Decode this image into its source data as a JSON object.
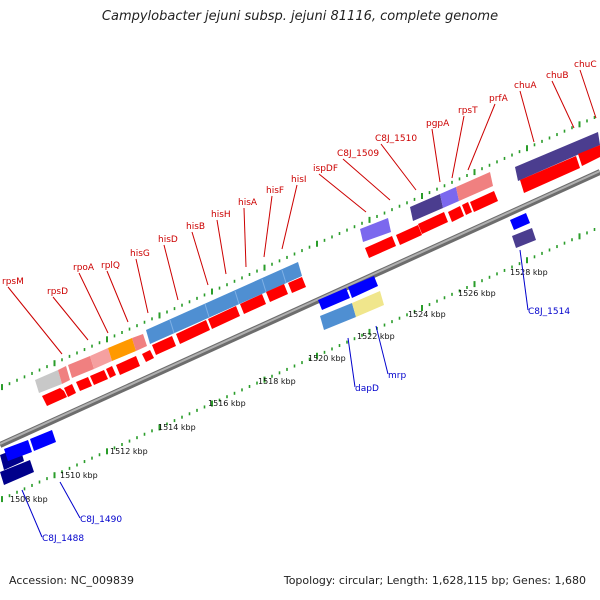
{
  "title": "Campylobacter jejuni subsp. jejuni 81116, complete genome",
  "colors": {
    "forward_gene_label": "#cc0000",
    "reverse_gene_label": "#0000cc",
    "backbone": "#888888",
    "tick": "#2a9d2a",
    "cds_forward": "#ff0000",
    "cds_reverse": "#0000ff"
  },
  "ruler": {
    "labels": [
      "1508 kbp",
      "1510 kbp",
      "1512 kbp",
      "1514 kbp",
      "1516 kbp",
      "1518 kbp",
      "1520 kbp",
      "1522 kbp",
      "1524 kbp",
      "1526 kbp",
      "1528 kbp"
    ]
  },
  "forward_genes": [
    "rpsM",
    "rpsD",
    "rpoA",
    "rplQ",
    "hisG",
    "hisD",
    "hisB",
    "hisH",
    "hisA",
    "hisF",
    "hisI",
    "ispDF",
    "C8J_1509",
    "C8J_1510",
    "pgpA",
    "rpsT",
    "prfA",
    "chuA",
    "chuB",
    "chuC"
  ],
  "reverse_genes": [
    "C8J_1488",
    "C8J_1490",
    "dapD",
    "mrp",
    "C8J_1514"
  ],
  "footer": {
    "accession": "Accession: NC_009839",
    "summary": "Topology: circular; Length: 1,628,115 bp; Genes: 1,680"
  }
}
